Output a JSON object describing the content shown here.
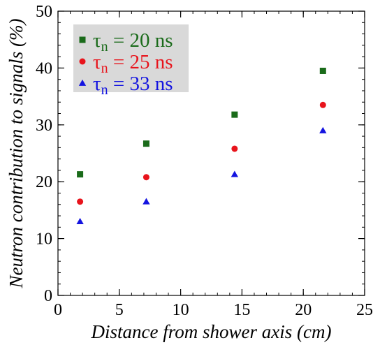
{
  "chart_data": {
    "type": "scatter",
    "xlabel": "Distance from shower axis (cm)",
    "ylabel": "Neutron contribution to signals (%)",
    "xlim": [
      0,
      25
    ],
    "ylim": [
      0,
      50
    ],
    "xticks": [
      0,
      5,
      10,
      15,
      20,
      25
    ],
    "yticks": [
      0,
      10,
      20,
      30,
      40,
      50
    ],
    "x_tick_labels": [
      "0",
      "5",
      "10",
      "15",
      "20",
      "25"
    ],
    "y_tick_labels": [
      "0",
      "10",
      "20",
      "30",
      "40",
      "50"
    ],
    "x_minor_step": 1,
    "y_minor_step": 2,
    "grid": false,
    "legend_position": "top-left",
    "legend_background": "#d9d9d9",
    "series": [
      {
        "name_symbol": "τ",
        "name_sub": "n",
        "name_rest": " = 20 ns",
        "marker": "square",
        "color": "#1a6b1a",
        "x": [
          1.8,
          7.2,
          14.4,
          21.6
        ],
        "y": [
          21.3,
          26.7,
          31.8,
          39.5
        ]
      },
      {
        "name_symbol": "τ",
        "name_sub": "n",
        "name_rest": " = 25 ns",
        "marker": "circle",
        "color": "#e8141c",
        "x": [
          1.8,
          7.2,
          14.4,
          21.6
        ],
        "y": [
          16.5,
          20.8,
          25.8,
          33.5
        ]
      },
      {
        "name_symbol": "τ",
        "name_sub": "n",
        "name_rest": " = 33 ns",
        "marker": "triangle",
        "color": "#1414e0",
        "x": [
          1.8,
          7.2,
          14.4,
          21.6
        ],
        "y": [
          13.0,
          16.5,
          21.3,
          29.0
        ]
      }
    ]
  }
}
